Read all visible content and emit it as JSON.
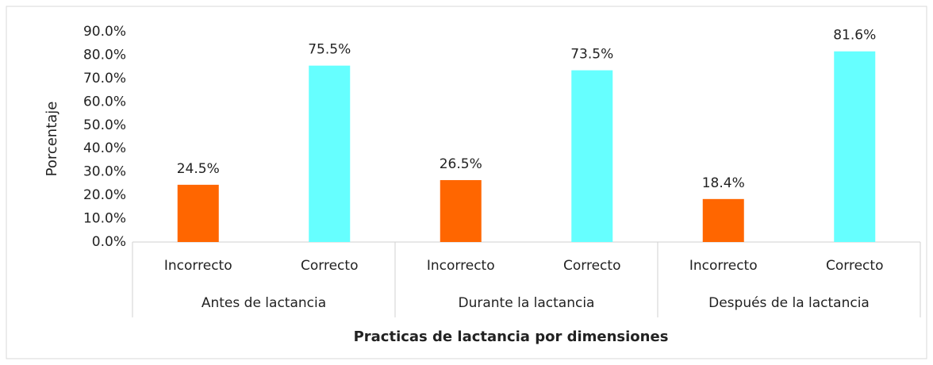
{
  "chart_data": {
    "type": "bar",
    "x_label": "Practicas de lactancia por dimensiones",
    "y_label": "Porcentaje",
    "categories": [
      "Incorrecto",
      "Correcto",
      "Incorrecto",
      "Correcto",
      "Incorrecto",
      "Correcto"
    ],
    "groups": [
      "Antes de lactancia",
      "Durante la lactancia",
      "Después de la lactancia"
    ],
    "values": [
      24.5,
      75.5,
      26.5,
      73.5,
      18.4,
      81.6
    ],
    "value_labels": [
      "24.5%",
      "75.5%",
      "26.5%",
      "73.5%",
      "18.4%",
      "81.6%"
    ],
    "colors": [
      "#ff6600",
      "#66ffff",
      "#ff6600",
      "#66ffff",
      "#ff6600",
      "#66ffff"
    ],
    "ylim": [
      0,
      90
    ],
    "yticks": [
      {
        "value": 0,
        "label": "0.0%"
      },
      {
        "value": 10,
        "label": "10.0%"
      },
      {
        "value": 20,
        "label": "20.0%"
      },
      {
        "value": 30,
        "label": "30.0%"
      },
      {
        "value": 40,
        "label": "40.0%"
      },
      {
        "value": 50,
        "label": "50.0%"
      },
      {
        "value": 60,
        "label": "60.0%"
      },
      {
        "value": 70,
        "label": "70.0%"
      },
      {
        "value": 80,
        "label": "80.0%"
      },
      {
        "value": 90,
        "label": "90.0%"
      }
    ],
    "grid": false
  }
}
